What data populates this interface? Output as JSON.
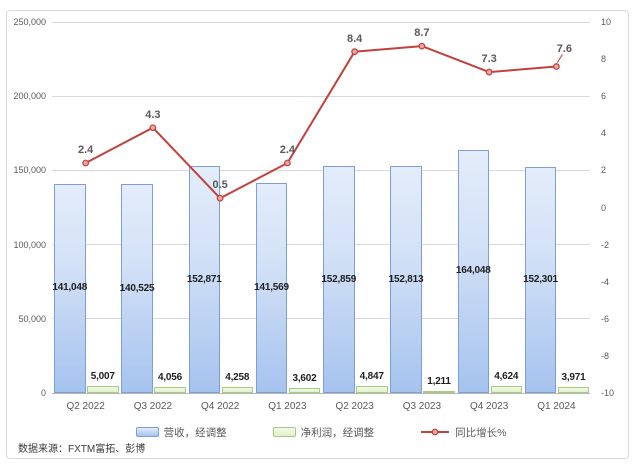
{
  "source_note": "数据来源：FXTM富拓、彭博",
  "chart_data": {
    "type": "combo",
    "categories": [
      "Q2 2022",
      "Q3 2022",
      "Q4 2022",
      "Q1 2023",
      "Q2 2023",
      "Q3 2023",
      "Q4 2023",
      "Q1 2024"
    ],
    "series": [
      {
        "name": "营收，经调整",
        "type": "bar",
        "axis": "left",
        "values": [
          141048,
          140525,
          152871,
          141569,
          152859,
          152813,
          164048,
          152301
        ],
        "labels": [
          "141,048",
          "140,525",
          "152,871",
          "141,569",
          "152,859",
          "152,813",
          "164,048",
          "152,301"
        ]
      },
      {
        "name": "净利润，经调整",
        "type": "bar",
        "axis": "left",
        "values": [
          5007,
          4056,
          4258,
          3602,
          4847,
          1211,
          4624,
          3971
        ],
        "labels": [
          "5,007",
          "4,056",
          "4,258",
          "3,602",
          "4,847",
          "1,211",
          "4,624",
          "3,971"
        ]
      },
      {
        "name": "同比增长%",
        "type": "line",
        "axis": "right",
        "values": [
          2.4,
          4.3,
          0.5,
          2.4,
          8.4,
          8.7,
          7.3,
          7.6
        ],
        "labels": [
          "2.4",
          "4.3",
          "0.5",
          "2.4",
          "8.4",
          "8.7",
          "7.3",
          "7.6"
        ]
      }
    ],
    "left_axis": {
      "min": 0,
      "max": 250000,
      "step": 50000,
      "tick_labels": [
        "0",
        "50,000",
        "100,000",
        "150,000",
        "200,000",
        "250,000"
      ]
    },
    "right_axis": {
      "min": -10,
      "max": 10,
      "step": 2,
      "tick_labels": [
        "-10",
        "-8",
        "-6",
        "-4",
        "-2",
        "0",
        "2",
        "4",
        "6",
        "8",
        "10"
      ]
    },
    "grid": true,
    "legend_position": "bottom",
    "data_labels": true
  },
  "colors": {
    "revenue_fill_top": "#e3ecfa",
    "revenue_fill_bottom": "#a6c3ee",
    "revenue_border": "#7e9ed8",
    "profit_fill_top": "#f2f9e7",
    "profit_fill_bottom": "#e2f1cd",
    "profit_border": "#a5cd82",
    "growth_line": "#c0413d",
    "growth_marker_fill": "#e9a69f",
    "axis_text": "#595959",
    "grid_line": "#d9d9d9",
    "zero_axis_line": "#b7b7b7",
    "frame_border": "#d9d9d9"
  }
}
